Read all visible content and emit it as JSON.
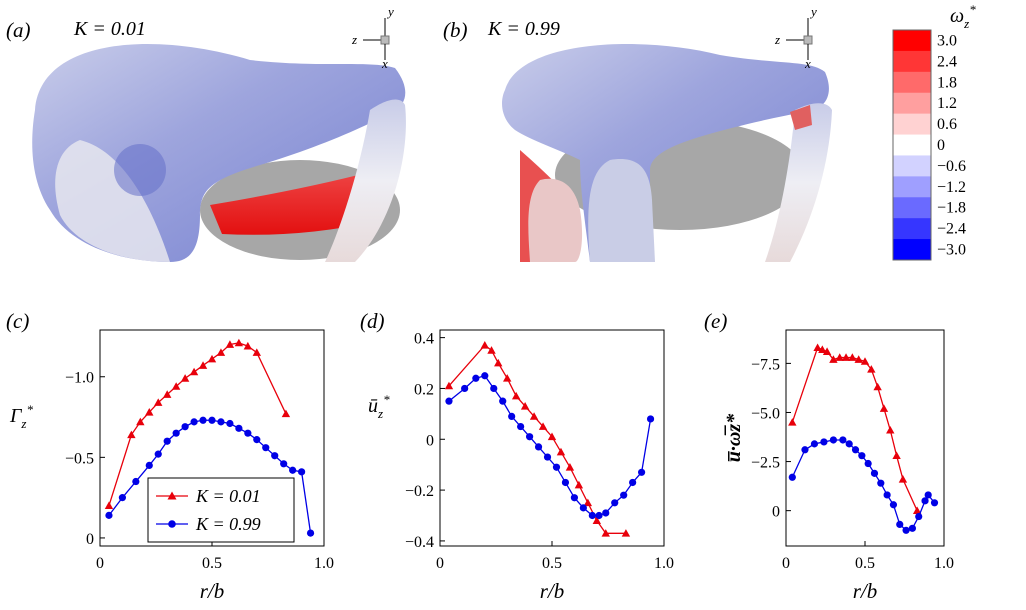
{
  "top_panels": [
    {
      "label": "(a)",
      "k_label": "K = 0.01"
    },
    {
      "label": "(b)",
      "k_label": "K = 0.99"
    }
  ],
  "axes_triad": {
    "y": "y",
    "z": "z",
    "x": "x"
  },
  "colorbar": {
    "title": "ω_z*",
    "ticks": [
      "3.0",
      "2.4",
      "1.8",
      "1.2",
      "0.6",
      "0",
      "−0.6",
      "−1.2",
      "−1.8",
      "−2.4",
      "−3.0"
    ],
    "colors": [
      "#ff0000",
      "#ff3636",
      "#ff6a6a",
      "#ff9f9f",
      "#ffd2d2",
      "#ffffff",
      "#d2d2ff",
      "#9f9fff",
      "#6a6aff",
      "#3636ff",
      "#0000ff"
    ]
  },
  "series_colors": {
    "k001": "#e8000b",
    "k099": "#0000e6"
  },
  "chart_data": [
    {
      "panel": "(c)",
      "type": "line",
      "xlabel": "r/b",
      "ylabel": "Γz*",
      "xlim": [
        0,
        1.0
      ],
      "ylim": [
        0.05,
        -1.29
      ],
      "y_inverted": true,
      "xticks": [
        "0",
        "0.5",
        "1.0"
      ],
      "yticks": [
        "0",
        "−0.5",
        "−1.0"
      ],
      "legend_position": "lower-center",
      "series": [
        {
          "name": "K = 0.01",
          "marker": "triangle",
          "x": [
            0.04,
            0.14,
            0.18,
            0.22,
            0.26,
            0.3,
            0.34,
            0.38,
            0.42,
            0.46,
            0.5,
            0.54,
            0.58,
            0.62,
            0.66,
            0.7,
            0.83
          ],
          "y": [
            -0.2,
            -0.64,
            -0.72,
            -0.78,
            -0.84,
            -0.89,
            -0.94,
            -0.99,
            -1.03,
            -1.07,
            -1.11,
            -1.15,
            -1.2,
            -1.21,
            -1.19,
            -1.15,
            -0.77
          ]
        },
        {
          "name": "K = 0.99",
          "marker": "circle",
          "x": [
            0.04,
            0.1,
            0.16,
            0.22,
            0.26,
            0.3,
            0.34,
            0.38,
            0.42,
            0.46,
            0.5,
            0.54,
            0.58,
            0.62,
            0.66,
            0.7,
            0.74,
            0.78,
            0.82,
            0.86,
            0.9,
            0.94
          ],
          "y": [
            -0.14,
            -0.25,
            -0.35,
            -0.45,
            -0.52,
            -0.6,
            -0.65,
            -0.69,
            -0.72,
            -0.73,
            -0.73,
            -0.72,
            -0.71,
            -0.68,
            -0.65,
            -0.61,
            -0.56,
            -0.51,
            -0.46,
            -0.42,
            -0.41,
            -0.03
          ]
        }
      ]
    },
    {
      "panel": "(d)",
      "type": "line",
      "xlabel": "r/b",
      "ylabel": "ūz*",
      "xlim": [
        0,
        1.0
      ],
      "ylim": [
        -0.42,
        0.43
      ],
      "xticks": [
        "0",
        "0.5",
        "1.0"
      ],
      "yticks": [
        "−0.4",
        "−0.2",
        "0",
        "0.2",
        "0.4"
      ],
      "series": [
        {
          "name": "K = 0.01",
          "marker": "triangle",
          "x": [
            0.04,
            0.2,
            0.23,
            0.26,
            0.3,
            0.34,
            0.38,
            0.42,
            0.46,
            0.5,
            0.54,
            0.58,
            0.62,
            0.66,
            0.7,
            0.74,
            0.83
          ],
          "y": [
            0.21,
            0.37,
            0.35,
            0.3,
            0.24,
            0.17,
            0.13,
            0.09,
            0.05,
            0.01,
            -0.05,
            -0.11,
            -0.18,
            -0.25,
            -0.32,
            -0.37,
            -0.37
          ]
        },
        {
          "name": "K = 0.99",
          "marker": "circle",
          "x": [
            0.04,
            0.11,
            0.16,
            0.2,
            0.24,
            0.28,
            0.32,
            0.36,
            0.4,
            0.44,
            0.48,
            0.52,
            0.56,
            0.6,
            0.64,
            0.68,
            0.71,
            0.74,
            0.78,
            0.82,
            0.86,
            0.9,
            0.94
          ],
          "y": [
            0.15,
            0.2,
            0.24,
            0.25,
            0.2,
            0.15,
            0.09,
            0.05,
            0.01,
            -0.03,
            -0.07,
            -0.11,
            -0.17,
            -0.23,
            -0.27,
            -0.3,
            -0.3,
            -0.29,
            -0.25,
            -0.22,
            -0.17,
            -0.13,
            0.08
          ]
        }
      ]
    },
    {
      "panel": "(e)",
      "type": "line",
      "xlabel": "r/b",
      "ylabel": "u̅·ω̅z*",
      "xlim": [
        0,
        1.0
      ],
      "ylim": [
        1.8,
        -9.2
      ],
      "y_inverted": true,
      "xticks": [
        "0",
        "0.5",
        "1.0"
      ],
      "yticks": [
        "0",
        "−2.5",
        "−5.0",
        "−7.5"
      ],
      "series": [
        {
          "name": "K = 0.01",
          "marker": "triangle",
          "x": [
            0.04,
            0.2,
            0.23,
            0.26,
            0.3,
            0.34,
            0.38,
            0.42,
            0.46,
            0.5,
            0.54,
            0.58,
            0.62,
            0.66,
            0.7,
            0.74,
            0.83
          ],
          "y": [
            -4.5,
            -8.3,
            -8.2,
            -8.1,
            -7.7,
            -7.8,
            -7.8,
            -7.8,
            -7.7,
            -7.6,
            -7.2,
            -6.3,
            -5.2,
            -4.1,
            -2.8,
            -1.6,
            0.0
          ]
        },
        {
          "name": "K = 0.99",
          "marker": "circle",
          "x": [
            0.04,
            0.12,
            0.18,
            0.24,
            0.3,
            0.36,
            0.4,
            0.44,
            0.48,
            0.52,
            0.56,
            0.6,
            0.64,
            0.68,
            0.72,
            0.76,
            0.8,
            0.84,
            0.88,
            0.9,
            0.94
          ],
          "y": [
            -1.7,
            -3.1,
            -3.4,
            -3.5,
            -3.6,
            -3.6,
            -3.4,
            -3.1,
            -2.8,
            -2.4,
            -1.9,
            -1.4,
            -0.8,
            -0.3,
            0.7,
            1.0,
            0.9,
            0.3,
            -0.5,
            -0.8,
            -0.4
          ]
        }
      ]
    }
  ]
}
